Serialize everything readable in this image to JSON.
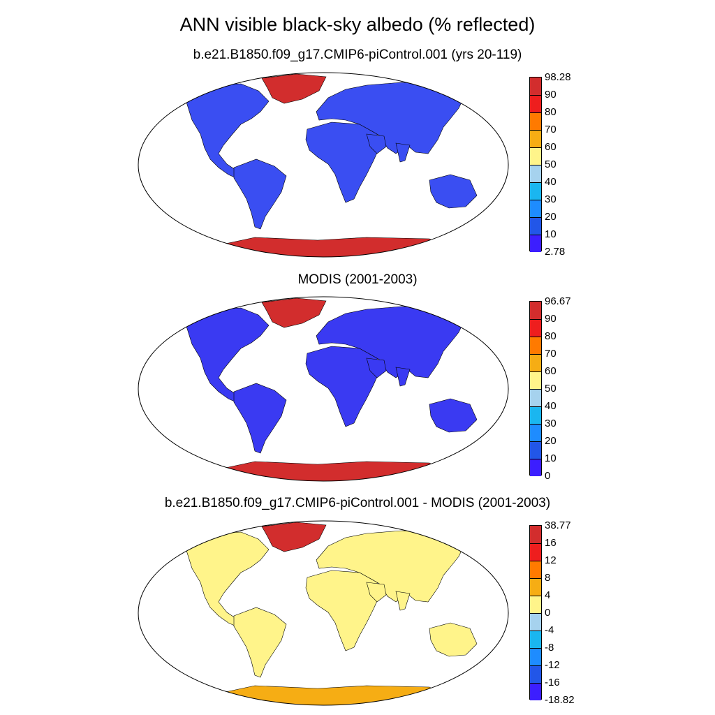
{
  "title": "ANN visible black-sky albedo (% reflected)",
  "panels": [
    {
      "title": "b.e21.B1850.f09_g17.CMIP6-piControl.001 (yrs 20-119)",
      "colorbar": {
        "labels": [
          "98.28",
          "90",
          "80",
          "70",
          "60",
          "50",
          "40",
          "30",
          "20",
          "10",
          "2.78"
        ],
        "colors": [
          "#d22d2d",
          "#ee1e1e",
          "#ff7a00",
          "#f6ad14",
          "#fff48a",
          "#a6d2ee",
          "#1ab6f0",
          "#1e8cff",
          "#2256e8",
          "#3c1eff"
        ]
      }
    },
    {
      "title": "MODIS (2001-2003)",
      "colorbar": {
        "labels": [
          "96.67",
          "90",
          "80",
          "70",
          "60",
          "50",
          "40",
          "30",
          "20",
          "10",
          "0"
        ],
        "colors": [
          "#d22d2d",
          "#ee1e1e",
          "#ff7a00",
          "#f6ad14",
          "#fff48a",
          "#a6d2ee",
          "#1ab6f0",
          "#1e8cff",
          "#2256e8",
          "#3c1eff"
        ]
      }
    },
    {
      "title": "b.e21.B1850.f09_g17.CMIP6-piControl.001 - MODIS (2001-2003)",
      "colorbar": {
        "labels": [
          "38.77",
          "16",
          "12",
          "8",
          "4",
          "0",
          "-4",
          "-8",
          "-12",
          "-16",
          "-18.82"
        ],
        "colors": [
          "#d22d2d",
          "#ee1e1e",
          "#ff7a00",
          "#f6ad14",
          "#fff48a",
          "#a6d2ee",
          "#1ab6f0",
          "#1e8cff",
          "#2256e8",
          "#3c1eff"
        ]
      }
    }
  ],
  "palette": {
    "land_model": "#3a4ef2",
    "land_modis": "#3a3af2",
    "land_diff": "#fff48a",
    "ice": "#d22d2d",
    "ice_diff": "#f6ad14"
  }
}
